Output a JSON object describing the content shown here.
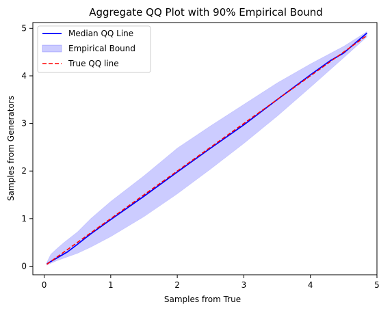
{
  "chart_data": {
    "type": "line",
    "title": "Aggregate QQ Plot with  90% Empirical Bound",
    "xlabel": "Samples from True",
    "ylabel": "Samples from Generators",
    "xlim": [
      -0.17,
      5.0
    ],
    "ylim": [
      -0.18,
      5.12
    ],
    "xticks": [
      0,
      1,
      2,
      3,
      4,
      5
    ],
    "yticks": [
      0,
      1,
      2,
      3,
      4,
      5
    ],
    "grid": false,
    "legend_position": "upper-left",
    "series": [
      {
        "name": "Median QQ Line",
        "kind": "line",
        "color": "#0000ff",
        "dash": "solid",
        "x": [
          0.04,
          0.2,
          0.35,
          0.5,
          0.7,
          1.0,
          1.5,
          2.0,
          2.5,
          3.0,
          3.5,
          4.0,
          4.2,
          4.3,
          4.5,
          4.85
        ],
        "y": [
          0.05,
          0.18,
          0.3,
          0.46,
          0.68,
          0.98,
          1.47,
          1.98,
          2.48,
          2.97,
          3.5,
          4.02,
          4.22,
          4.32,
          4.48,
          4.9
        ]
      },
      {
        "name": "Empirical Bound",
        "kind": "band",
        "color": "#0000ff",
        "opacity": 0.2,
        "x": [
          0.04,
          0.1,
          0.2,
          0.3,
          0.5,
          0.7,
          1.0,
          1.5,
          2.0,
          2.5,
          3.0,
          3.5,
          4.0,
          4.5,
          4.85
        ],
        "lower": [
          0.02,
          0.06,
          0.12,
          0.17,
          0.27,
          0.4,
          0.62,
          1.04,
          1.52,
          2.04,
          2.58,
          3.15,
          3.76,
          4.38,
          4.82
        ],
        "upper": [
          0.08,
          0.25,
          0.38,
          0.5,
          0.72,
          1.0,
          1.36,
          1.9,
          2.48,
          2.95,
          3.4,
          3.85,
          4.25,
          4.62,
          4.93
        ]
      },
      {
        "name": "True QQ line",
        "kind": "line",
        "color": "#ff0000",
        "dash": "dashed",
        "x": [
          0.04,
          4.85
        ],
        "y": [
          0.04,
          4.85
        ]
      }
    ]
  }
}
